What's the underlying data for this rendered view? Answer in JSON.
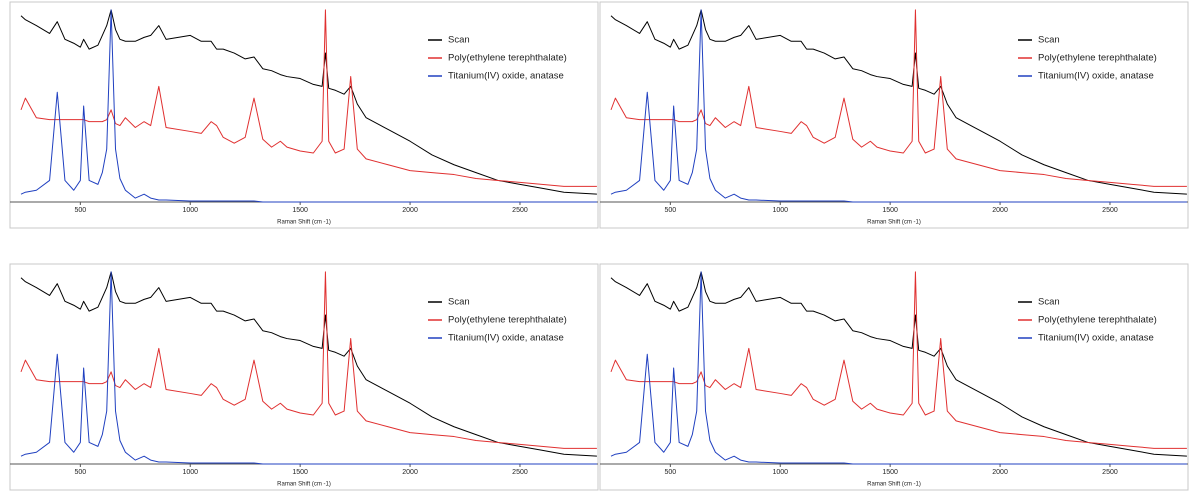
{
  "chart_data": [
    {
      "type": "line",
      "xlabel": "Raman Shift (cm -1)",
      "xlim": [
        180,
        2855
      ],
      "ylim": [
        0,
        100
      ],
      "xticks": [
        500,
        1000,
        1500,
        2000,
        2500
      ],
      "x": [
        230,
        250,
        300,
        360,
        395,
        430,
        470,
        500,
        515,
        540,
        580,
        600,
        620,
        640,
        660,
        680,
        705,
        750,
        790,
        820,
        857,
        890,
        1000,
        1050,
        1095,
        1120,
        1150,
        1200,
        1250,
        1290,
        1330,
        1370,
        1410,
        1440,
        1500,
        1560,
        1600,
        1615,
        1630,
        1660,
        1700,
        1730,
        1760,
        1800,
        1900,
        2000,
        2100,
        2200,
        2300,
        2400,
        2500,
        2600,
        2700,
        2850
      ],
      "series": [
        {
          "name": "Scan",
          "color": "#000000",
          "values": [
            95,
            93,
            90,
            86,
            92,
            83,
            81,
            79,
            83,
            78,
            80,
            85,
            90,
            98,
            88,
            83,
            82,
            82,
            84,
            85,
            90,
            83,
            85,
            82,
            82,
            78,
            78,
            76,
            73,
            74,
            68,
            67,
            65,
            64,
            63,
            60,
            59,
            76,
            58,
            57,
            55,
            59,
            50,
            43,
            37,
            31,
            24,
            19,
            15,
            11,
            9,
            7,
            5,
            4
          ]
        },
        {
          "name": "Poly(ethylene terephthalate)",
          "color": "#e03030",
          "values": [
            47,
            53,
            43,
            42,
            42,
            42,
            42,
            42,
            42,
            41,
            41,
            41,
            42,
            47,
            40,
            39,
            43,
            38,
            41,
            39,
            59,
            38,
            36,
            35,
            41,
            39,
            33,
            30,
            33,
            53,
            32,
            28,
            31,
            28,
            26,
            25,
            31,
            98,
            31,
            25,
            27,
            64,
            27,
            22,
            19,
            16,
            15,
            14,
            12,
            11,
            10,
            9,
            8,
            8
          ]
        },
        {
          "name": "Titanium(IV) oxide, anatase",
          "color": "#2040c0",
          "values": [
            4,
            5,
            6,
            11,
            56,
            11,
            6,
            11,
            49,
            11,
            9,
            15,
            27,
            98,
            27,
            12,
            6,
            2,
            4,
            2,
            1,
            1,
            0.5,
            0.5,
            0.5,
            0.5,
            0.5,
            0.5,
            0.5,
            0.5,
            0,
            0,
            0,
            0,
            0,
            0,
            0,
            0,
            0,
            0,
            0,
            0,
            0,
            0,
            0,
            0,
            0,
            0,
            0,
            0,
            0,
            0,
            0,
            0
          ]
        }
      ]
    },
    {
      "type": "line",
      "xlabel": "Raman Shift (cm -1)",
      "xlim": [
        180,
        2855
      ],
      "ylim": [
        0,
        100
      ],
      "xticks": [
        500,
        1000,
        1500,
        2000,
        2500
      ],
      "x": [
        230,
        250,
        300,
        360,
        395,
        430,
        470,
        500,
        515,
        540,
        580,
        600,
        620,
        640,
        660,
        680,
        705,
        750,
        790,
        820,
        857,
        890,
        1000,
        1050,
        1095,
        1120,
        1150,
        1200,
        1250,
        1290,
        1330,
        1370,
        1410,
        1440,
        1500,
        1560,
        1600,
        1615,
        1630,
        1660,
        1700,
        1730,
        1760,
        1800,
        1900,
        2000,
        2100,
        2200,
        2300,
        2400,
        2500,
        2600,
        2700,
        2850
      ],
      "series": [
        {
          "name": "Scan",
          "color": "#000000",
          "values": [
            95,
            93,
            90,
            86,
            92,
            83,
            81,
            79,
            83,
            78,
            80,
            85,
            90,
            98,
            88,
            83,
            82,
            82,
            84,
            85,
            90,
            83,
            85,
            82,
            82,
            78,
            78,
            76,
            73,
            74,
            68,
            67,
            65,
            64,
            63,
            60,
            59,
            76,
            58,
            57,
            55,
            59,
            50,
            43,
            37,
            31,
            24,
            19,
            15,
            11,
            9,
            7,
            5,
            4
          ]
        },
        {
          "name": "Poly(ethylene terephthalate)",
          "color": "#e03030",
          "values": [
            47,
            53,
            43,
            42,
            42,
            42,
            42,
            42,
            42,
            41,
            41,
            41,
            42,
            47,
            40,
            39,
            43,
            38,
            41,
            39,
            59,
            38,
            36,
            35,
            41,
            39,
            33,
            30,
            33,
            53,
            32,
            28,
            31,
            28,
            26,
            25,
            31,
            98,
            31,
            25,
            27,
            64,
            27,
            22,
            19,
            16,
            15,
            14,
            12,
            11,
            10,
            9,
            8,
            8
          ]
        },
        {
          "name": "Titanium(IV) oxide, anatase",
          "color": "#2040c0",
          "values": [
            4,
            5,
            6,
            11,
            56,
            11,
            6,
            11,
            49,
            11,
            9,
            15,
            27,
            98,
            27,
            12,
            6,
            2,
            4,
            2,
            1,
            1,
            0.5,
            0.5,
            0.5,
            0.5,
            0.5,
            0.5,
            0.5,
            0.5,
            0,
            0,
            0,
            0,
            0,
            0,
            0,
            0,
            0,
            0,
            0,
            0,
            0,
            0,
            0,
            0,
            0,
            0,
            0,
            0,
            0,
            0,
            0,
            0
          ]
        }
      ]
    },
    {
      "type": "line",
      "xlabel": "Raman Shift (cm -1)",
      "xlim": [
        180,
        2855
      ],
      "ylim": [
        0,
        100
      ],
      "xticks": [
        500,
        1000,
        1500,
        2000,
        2500
      ],
      "x": [
        230,
        250,
        300,
        360,
        395,
        430,
        470,
        500,
        515,
        540,
        580,
        600,
        620,
        640,
        660,
        680,
        705,
        750,
        790,
        820,
        857,
        890,
        1000,
        1050,
        1095,
        1120,
        1150,
        1200,
        1250,
        1290,
        1330,
        1370,
        1410,
        1440,
        1500,
        1560,
        1600,
        1615,
        1630,
        1660,
        1700,
        1730,
        1760,
        1800,
        1900,
        2000,
        2100,
        2200,
        2300,
        2400,
        2500,
        2600,
        2700,
        2850
      ],
      "series": [
        {
          "name": "Scan",
          "color": "#000000",
          "values": [
            95,
            93,
            90,
            86,
            92,
            83,
            81,
            79,
            83,
            78,
            80,
            85,
            90,
            98,
            88,
            83,
            82,
            82,
            84,
            85,
            90,
            83,
            85,
            82,
            82,
            78,
            78,
            76,
            73,
            74,
            68,
            67,
            65,
            64,
            63,
            60,
            59,
            76,
            58,
            57,
            55,
            59,
            50,
            43,
            37,
            31,
            24,
            19,
            15,
            11,
            9,
            7,
            5,
            4
          ]
        },
        {
          "name": "Poly(ethylene terephthalate)",
          "color": "#e03030",
          "values": [
            47,
            53,
            43,
            42,
            42,
            42,
            42,
            42,
            42,
            41,
            41,
            41,
            42,
            47,
            40,
            39,
            43,
            38,
            41,
            39,
            59,
            38,
            36,
            35,
            41,
            39,
            33,
            30,
            33,
            53,
            32,
            28,
            31,
            28,
            26,
            25,
            31,
            98,
            31,
            25,
            27,
            64,
            27,
            22,
            19,
            16,
            15,
            14,
            12,
            11,
            10,
            9,
            8,
            8
          ]
        },
        {
          "name": "Titanium(IV) oxide, anatase",
          "color": "#2040c0",
          "values": [
            4,
            5,
            6,
            11,
            56,
            11,
            6,
            11,
            49,
            11,
            9,
            15,
            27,
            98,
            27,
            12,
            6,
            2,
            4,
            2,
            1,
            1,
            0.5,
            0.5,
            0.5,
            0.5,
            0.5,
            0.5,
            0.5,
            0.5,
            0,
            0,
            0,
            0,
            0,
            0,
            0,
            0,
            0,
            0,
            0,
            0,
            0,
            0,
            0,
            0,
            0,
            0,
            0,
            0,
            0,
            0,
            0,
            0
          ]
        }
      ]
    },
    {
      "type": "line",
      "xlabel": "Raman Shift (cm -1)",
      "xlim": [
        180,
        2855
      ],
      "ylim": [
        0,
        100
      ],
      "xticks": [
        500,
        1000,
        1500,
        2000,
        2500
      ],
      "x": [
        230,
        250,
        300,
        360,
        395,
        430,
        470,
        500,
        515,
        540,
        580,
        600,
        620,
        640,
        660,
        680,
        705,
        750,
        790,
        820,
        857,
        890,
        1000,
        1050,
        1095,
        1120,
        1150,
        1200,
        1250,
        1290,
        1330,
        1370,
        1410,
        1440,
        1500,
        1560,
        1600,
        1615,
        1630,
        1660,
        1700,
        1730,
        1760,
        1800,
        1900,
        2000,
        2100,
        2200,
        2300,
        2400,
        2500,
        2600,
        2700,
        2850
      ],
      "series": [
        {
          "name": "Scan",
          "color": "#000000",
          "values": [
            95,
            93,
            90,
            86,
            92,
            83,
            81,
            79,
            83,
            78,
            80,
            85,
            90,
            98,
            88,
            83,
            82,
            82,
            84,
            85,
            90,
            83,
            85,
            82,
            82,
            78,
            78,
            76,
            73,
            74,
            68,
            67,
            65,
            64,
            63,
            60,
            59,
            76,
            58,
            57,
            55,
            59,
            50,
            43,
            37,
            31,
            24,
            19,
            15,
            11,
            9,
            7,
            5,
            4
          ]
        },
        {
          "name": "Poly(ethylene terephthalate)",
          "color": "#e03030",
          "values": [
            47,
            53,
            43,
            42,
            42,
            42,
            42,
            42,
            42,
            41,
            41,
            41,
            42,
            47,
            40,
            39,
            43,
            38,
            41,
            39,
            59,
            38,
            36,
            35,
            41,
            39,
            33,
            30,
            33,
            53,
            32,
            28,
            31,
            28,
            26,
            25,
            31,
            98,
            31,
            25,
            27,
            64,
            27,
            22,
            19,
            16,
            15,
            14,
            12,
            11,
            10,
            9,
            8,
            8
          ]
        },
        {
          "name": "Titanium(IV) oxide, anatase",
          "color": "#2040c0",
          "values": [
            4,
            5,
            6,
            11,
            56,
            11,
            6,
            11,
            49,
            11,
            9,
            15,
            27,
            98,
            27,
            12,
            6,
            2,
            4,
            2,
            1,
            1,
            0.5,
            0.5,
            0.5,
            0.5,
            0.5,
            0.5,
            0.5,
            0.5,
            0,
            0,
            0,
            0,
            0,
            0,
            0,
            0,
            0,
            0,
            0,
            0,
            0,
            0,
            0,
            0,
            0,
            0,
            0,
            0,
            0,
            0,
            0,
            0
          ]
        }
      ]
    }
  ]
}
